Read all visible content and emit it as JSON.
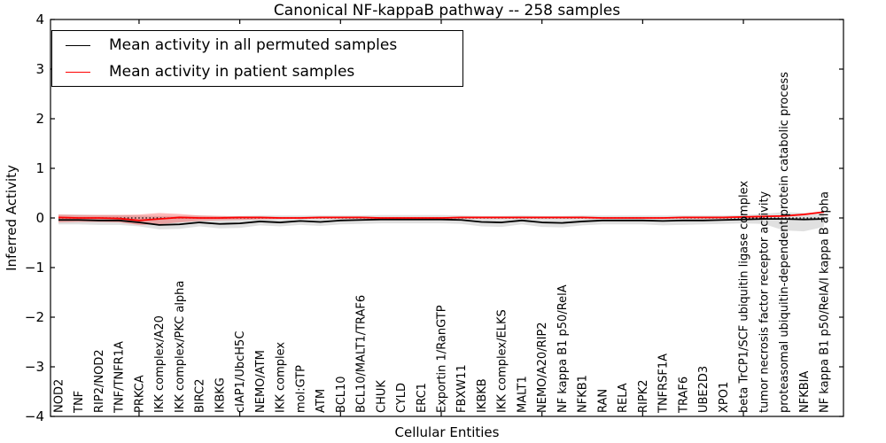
{
  "figure": {
    "title": "Canonical NF-kappaB pathway -- 258 samples",
    "background": "#ffffff"
  },
  "legend": {
    "items": [
      {
        "label": "Mean activity in all permuted samples",
        "color": "#000000"
      },
      {
        "label": "Mean activity in patient samples",
        "color": "#ff0000"
      }
    ]
  },
  "chart_data": {
    "type": "line",
    "title": "Canonical NF-kappaB pathway -- 258 samples",
    "xlabel": "Cellular Entities",
    "ylabel": "Inferred Activity",
    "ylim": [
      -4,
      4
    ],
    "yticks": [
      4,
      3,
      2,
      1,
      0,
      -1,
      -2,
      -3,
      -4
    ],
    "ytick_labels": [
      "4",
      "3",
      "2",
      "1",
      "0",
      "−1",
      "−2",
      "−3",
      "−4"
    ],
    "x_major_tick_values": [
      5,
      10,
      15,
      20,
      25,
      30,
      35
    ],
    "grid": false,
    "legend_position": "upper left",
    "zero_line": {
      "y": 0,
      "style": "dotted",
      "color": "#000000"
    },
    "categories": [
      "NOD2",
      "TNF",
      "RIP2/NOD2",
      "TNF/TNFR1A",
      "PRKCA",
      "IKK complex/A20",
      "IKK complex/PKC alpha",
      "BIRC2",
      "IKBKG",
      "cIAP1/UbcH5C",
      "NEMO/ATM",
      "IKK complex",
      "mol:GTP",
      "ATM",
      "BCL10",
      "BCL10/MALT1/TRAF6",
      "CHUK",
      "CYLD",
      "ERC1",
      "Exportin 1/RanGTP",
      "FBXW11",
      "IKBKB",
      "IKK complex/ELKS",
      "MALT1",
      "NEMO/A20/RIP2",
      "NF kappa B1 p50/RelA",
      "NFKB1",
      "RAN",
      "RELA",
      "RIPK2",
      "TNFRSF1A",
      "TRAF6",
      "UBE2D3",
      "XPO1",
      "beta TrCP1/SCF ubiquitin ligase complex",
      "tumor necrosis factor receptor activity",
      "proteasomal ubiquitin-dependent protein catabolic process",
      "NFKBIA",
      "NF kappa B1 p50/RelA/I kappa B alpha"
    ],
    "series": [
      {
        "name": "Mean activity in all permuted samples",
        "color": "#000000",
        "values": [
          -0.04,
          -0.04,
          -0.05,
          -0.05,
          -0.09,
          -0.14,
          -0.13,
          -0.09,
          -0.12,
          -0.11,
          -0.07,
          -0.09,
          -0.06,
          -0.08,
          -0.05,
          -0.04,
          -0.03,
          -0.03,
          -0.03,
          -0.03,
          -0.04,
          -0.08,
          -0.09,
          -0.05,
          -0.09,
          -0.1,
          -0.07,
          -0.05,
          -0.05,
          -0.05,
          -0.06,
          -0.05,
          -0.05,
          -0.04,
          -0.03,
          -0.02,
          -0.02,
          -0.03,
          -0.02
        ]
      },
      {
        "name": "Mean activity in patient samples",
        "color": "#ff0000",
        "values": [
          0.01,
          0.0,
          0.0,
          -0.01,
          -0.05,
          -0.02,
          0.01,
          0.0,
          0.0,
          0.01,
          0.01,
          0.0,
          0.0,
          0.01,
          0.01,
          0.01,
          0.0,
          0.0,
          0.0,
          0.0,
          0.01,
          0.01,
          0.01,
          0.01,
          0.01,
          0.01,
          0.01,
          0.0,
          0.0,
          0.0,
          0.0,
          0.01,
          0.01,
          0.01,
          0.02,
          0.03,
          0.04,
          0.07,
          0.12
        ]
      }
    ],
    "bands": [
      {
        "name": "permuted-sample-range",
        "color": "#000000",
        "opacity": 0.12,
        "upper": [
          0.07,
          0.07,
          0.06,
          0.06,
          0.05,
          0.04,
          0.04,
          0.05,
          0.04,
          0.04,
          0.05,
          0.05,
          0.05,
          0.05,
          0.05,
          0.05,
          0.06,
          0.06,
          0.06,
          0.06,
          0.05,
          0.04,
          0.04,
          0.05,
          0.04,
          0.04,
          0.05,
          0.05,
          0.05,
          0.05,
          0.05,
          0.05,
          0.05,
          0.05,
          0.06,
          0.08,
          0.12,
          0.1,
          0.09
        ],
        "lower": [
          -0.13,
          -0.13,
          -0.14,
          -0.14,
          -0.17,
          -0.23,
          -0.22,
          -0.17,
          -0.21,
          -0.2,
          -0.15,
          -0.17,
          -0.14,
          -0.16,
          -0.13,
          -0.12,
          -0.11,
          -0.11,
          -0.11,
          -0.11,
          -0.12,
          -0.17,
          -0.18,
          -0.13,
          -0.18,
          -0.19,
          -0.15,
          -0.13,
          -0.13,
          -0.13,
          -0.15,
          -0.14,
          -0.13,
          -0.12,
          -0.11,
          -0.12,
          -0.25,
          -0.27,
          -0.18
        ]
      },
      {
        "name": "patient-sample-range",
        "color": "#ff0000",
        "opacity": 0.27,
        "upper": [
          0.07,
          0.06,
          0.06,
          0.06,
          0.07,
          0.1,
          0.08,
          0.05,
          0.04,
          0.03,
          0.025,
          0.02,
          0.02,
          0.025,
          0.025,
          0.025,
          0.015,
          0.015,
          0.015,
          0.015,
          0.025,
          0.025,
          0.025,
          0.025,
          0.025,
          0.025,
          0.025,
          0.015,
          0.015,
          0.015,
          0.015,
          0.025,
          0.025,
          0.025,
          0.035,
          0.045,
          0.055,
          0.085,
          0.135
        ],
        "lower": [
          -0.09,
          -0.08,
          -0.08,
          -0.09,
          -0.14,
          -0.13,
          -0.09,
          -0.06,
          -0.05,
          -0.04,
          -0.03,
          -0.02,
          -0.02,
          -0.005,
          -0.005,
          -0.005,
          -0.015,
          -0.015,
          -0.015,
          -0.015,
          -0.005,
          -0.005,
          -0.005,
          -0.005,
          -0.005,
          -0.005,
          -0.005,
          -0.015,
          -0.015,
          -0.015,
          -0.015,
          -0.005,
          -0.005,
          -0.005,
          0.005,
          0.015,
          0.025,
          0.055,
          0.105
        ]
      }
    ]
  }
}
